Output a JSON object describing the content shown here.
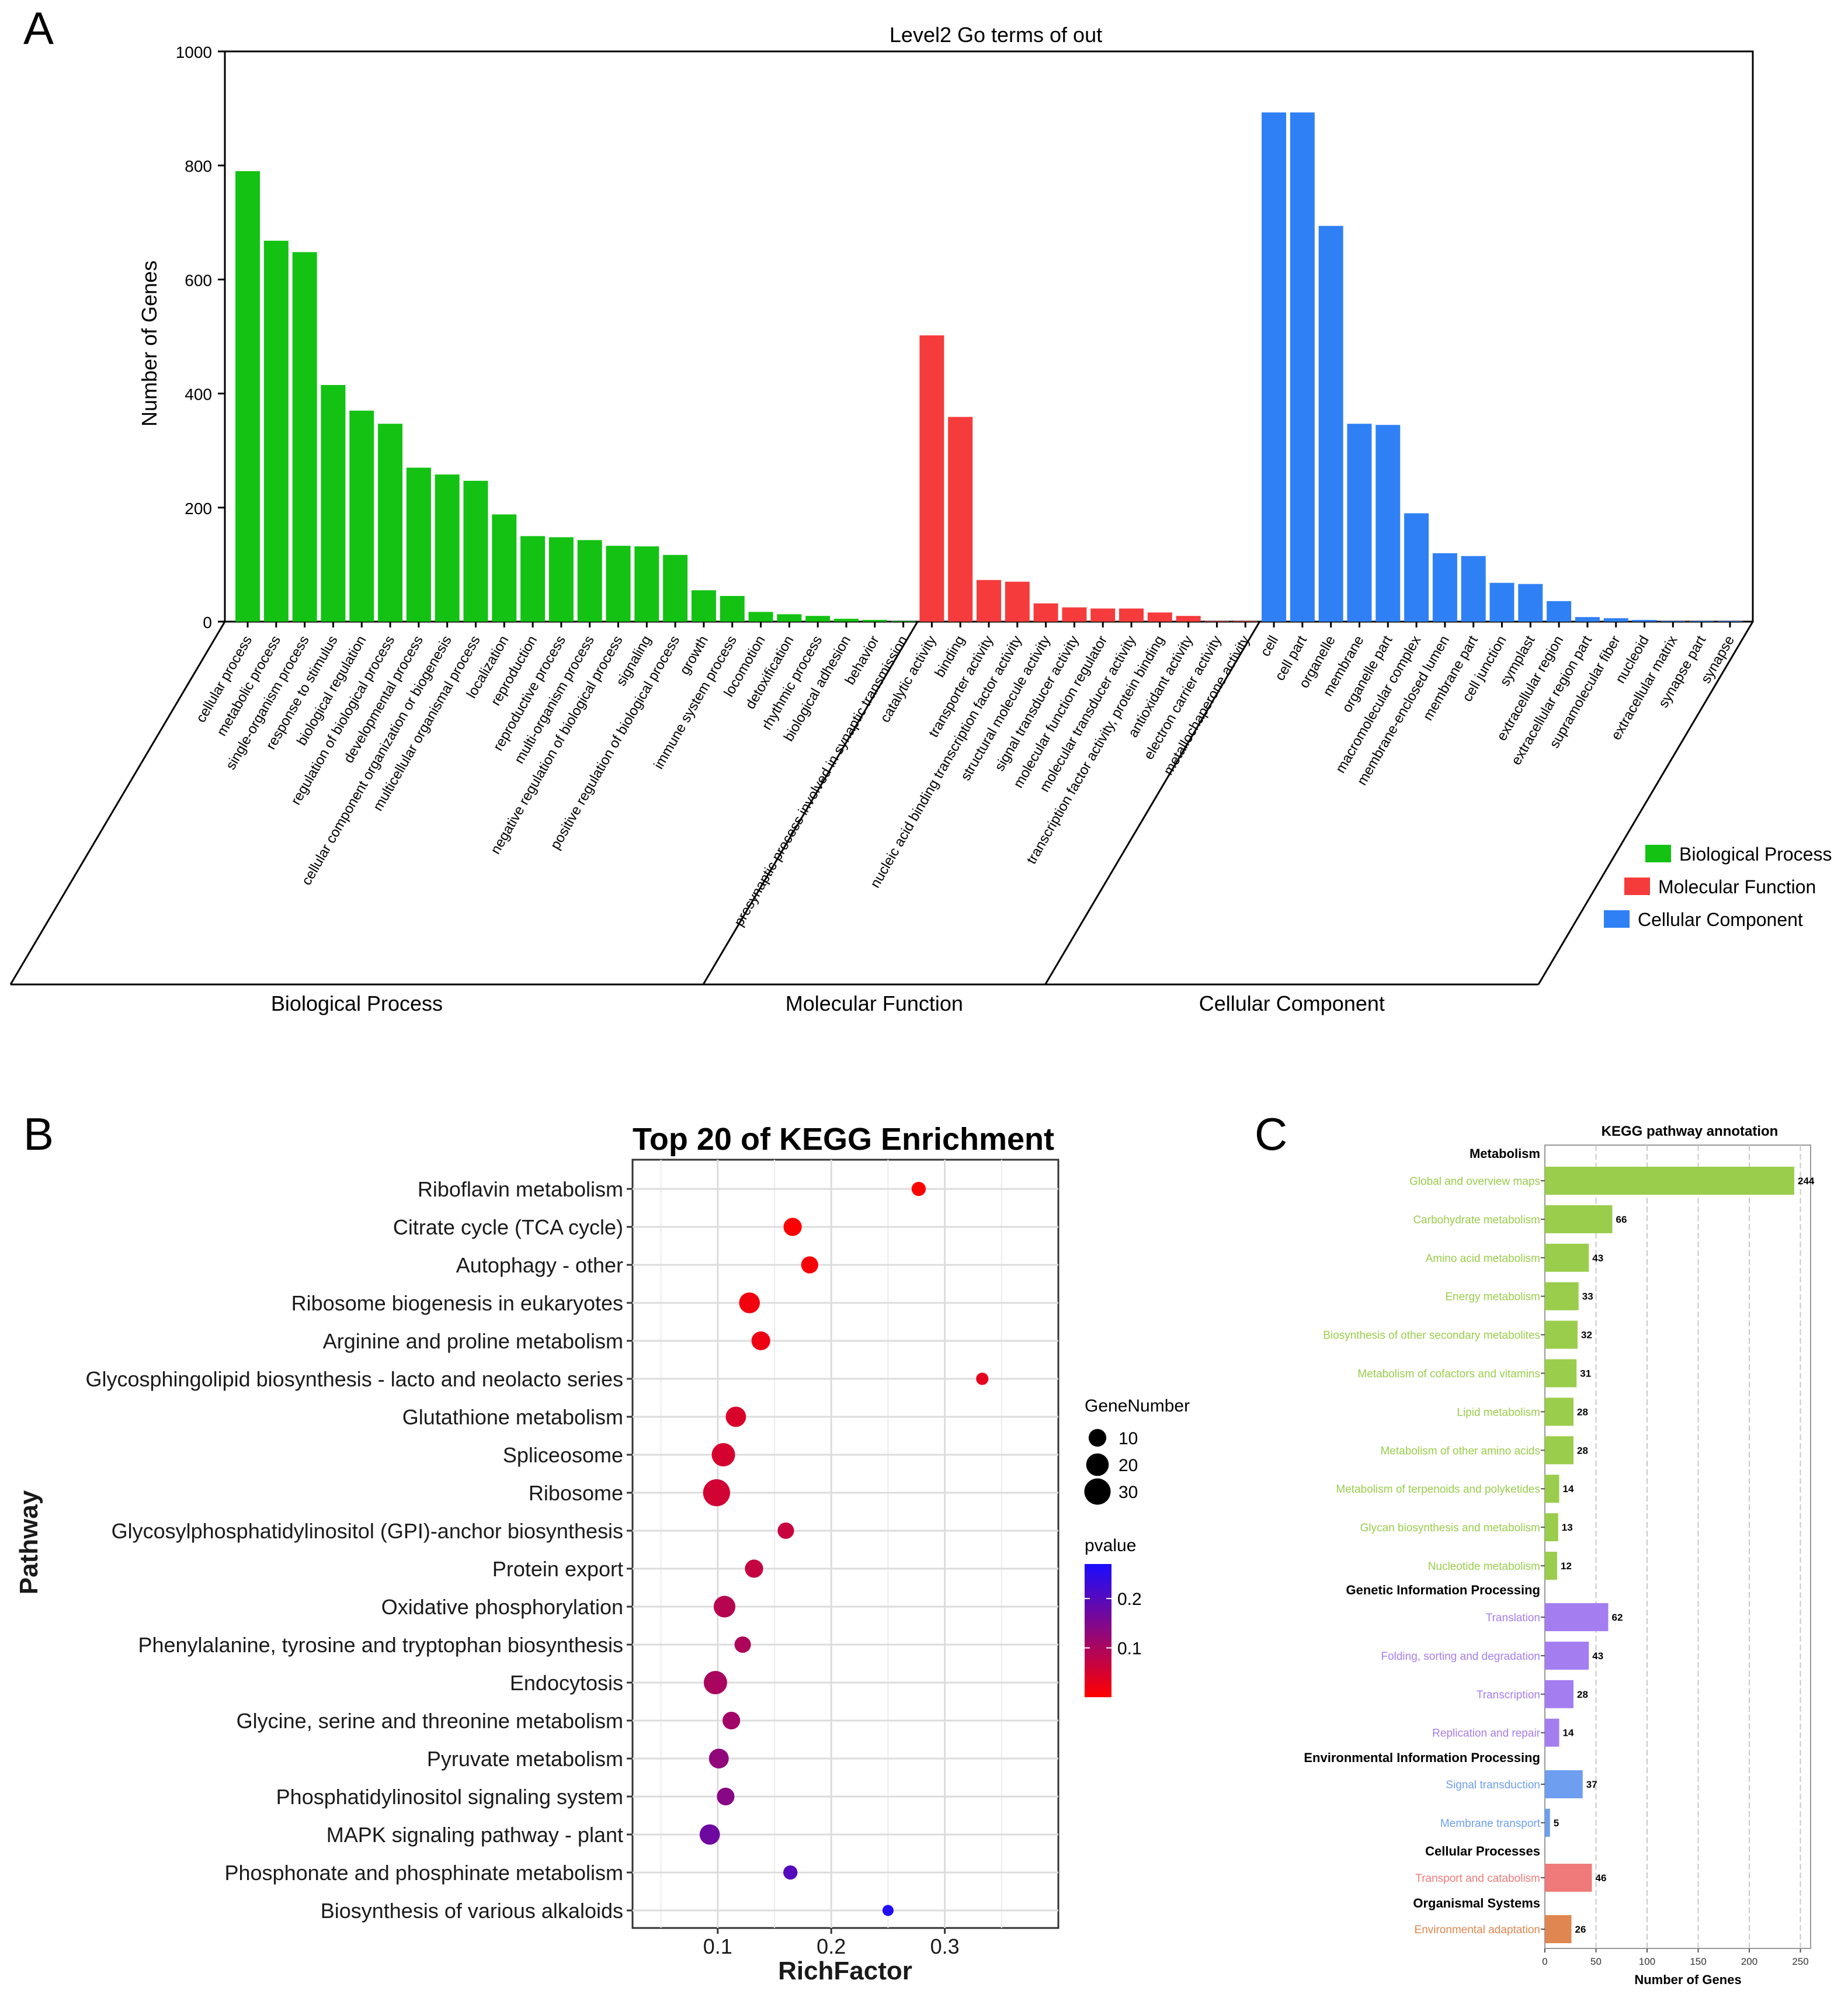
{
  "panels": {
    "a_letter": "A",
    "b_letter": "B",
    "c_letter": "C"
  },
  "chart_data": [
    {
      "id": "go",
      "type": "bar",
      "title": "Level2 Go terms of out",
      "ylabel": "Number of Genes",
      "ylim": [
        0,
        1000
      ],
      "yticks": [
        0,
        200,
        400,
        600,
        800,
        1000
      ],
      "colors": {
        "Biological Process": "#13c213",
        "Molecular Function": "#f53b3b",
        "Cellular Component": "#2f80f5"
      },
      "legend": [
        "Biological Process",
        "Molecular Function",
        "Cellular Component"
      ],
      "groups": [
        {
          "name": "Biological Process",
          "categories": [
            "cellular process",
            "metabolic process",
            "single-organism process",
            "response to stimulus",
            "biological regulation",
            "regulation of biological process",
            "developmental process",
            "cellular component organization or biogenesis",
            "multicellular organismal process",
            "localization",
            "reproduction",
            "reproductive process",
            "multi-organism process",
            "negative regulation of biological process",
            "signaling",
            "positive regulation of biological process",
            "growth",
            "immune system process",
            "locomotion",
            "detoxification",
            "rhythmic process",
            "biological adhesion",
            "behavior",
            "presynaptic process involved in synaptic transmission"
          ],
          "values": [
            790,
            668,
            648,
            415,
            370,
            347,
            270,
            258,
            247,
            188,
            150,
            148,
            143,
            133,
            132,
            117,
            55,
            45,
            17,
            13,
            10,
            5,
            3,
            1
          ]
        },
        {
          "name": "Molecular Function",
          "categories": [
            "catalytic activity",
            "binding",
            "transporter activity",
            "nucleic acid binding transcription factor activity",
            "structural molecule activity",
            "signal transducer activity",
            "molecular function regulator",
            "molecular transducer activity",
            "transcription factor activity, protein binding",
            "antioxidant activity",
            "electron carrier activity",
            "metallochaperone activity"
          ],
          "values": [
            502,
            359,
            73,
            70,
            32,
            25,
            23,
            23,
            16,
            10,
            1,
            1
          ]
        },
        {
          "name": "Cellular Component",
          "categories": [
            "cell",
            "cell part",
            "organelle",
            "membrane",
            "organelle part",
            "macromolecular complex",
            "membrane-enclosed lumen",
            "membrane part",
            "cell junction",
            "symplast",
            "extracellular region",
            "extracellular region part",
            "supramolecular fiber",
            "nucleoid",
            "extracellular matrix",
            "synapse part",
            "synapse"
          ],
          "values": [
            893,
            893,
            694,
            347,
            345,
            190,
            120,
            115,
            68,
            66,
            36,
            8,
            6,
            3,
            1,
            1,
            1
          ]
        }
      ]
    },
    {
      "id": "kegg_enrich",
      "type": "scatter",
      "title": "Top 20 of KEGG Enrichment",
      "xlabel": "RichFactor",
      "ylabel": "Pathway",
      "xlim": [
        0.025,
        0.4
      ],
      "xticks": [
        0.1,
        0.2,
        0.3
      ],
      "xticklabels": [
        "0.1",
        "0.2",
        "0.3"
      ],
      "size_legend_title": "GeneNumber",
      "size_legend": [
        10,
        20,
        30
      ],
      "color_legend_title": "pvalue",
      "color_legend_range": [
        0,
        0.27
      ],
      "color_legend_ticks": [
        0.1,
        0.2
      ],
      "color_legend_ticklabels": [
        "0.1",
        "0.2"
      ],
      "color_low": "#ff0000",
      "color_high": "#1a0dff",
      "points": [
        {
          "pathway": "Riboflavin metabolism",
          "richFactor": 0.277,
          "geneNumber": 5,
          "pvalue": 0.001
        },
        {
          "pathway": "Citrate cycle (TCA cycle)",
          "richFactor": 0.166,
          "geneNumber": 11,
          "pvalue": 0.004
        },
        {
          "pathway": "Autophagy - other",
          "richFactor": 0.181,
          "geneNumber": 9,
          "pvalue": 0.008
        },
        {
          "pathway": "Ribosome biogenesis in eukaryotes",
          "richFactor": 0.128,
          "geneNumber": 16,
          "pvalue": 0.015
        },
        {
          "pathway": "Arginine and proline metabolism",
          "richFactor": 0.138,
          "geneNumber": 12,
          "pvalue": 0.02
        },
        {
          "pathway": "Glycosphingolipid biosynthesis - lacto and neolacto series",
          "richFactor": 0.333,
          "geneNumber": 3,
          "pvalue": 0.03
        },
        {
          "pathway": "Glutathione metabolism",
          "richFactor": 0.116,
          "geneNumber": 15,
          "pvalue": 0.045
        },
        {
          "pathway": "Spliceosome",
          "richFactor": 0.105,
          "geneNumber": 22,
          "pvalue": 0.05
        },
        {
          "pathway": "Ribosome",
          "richFactor": 0.099,
          "geneNumber": 32,
          "pvalue": 0.055
        },
        {
          "pathway": "Glycosylphosphatidylinositol (GPI)-anchor biosynthesis",
          "richFactor": 0.16,
          "geneNumber": 8,
          "pvalue": 0.065
        },
        {
          "pathway": "Protein export",
          "richFactor": 0.132,
          "geneNumber": 11,
          "pvalue": 0.07
        },
        {
          "pathway": "Oxidative phosphorylation",
          "richFactor": 0.106,
          "geneNumber": 18,
          "pvalue": 0.085
        },
        {
          "pathway": "Phenylalanine, tyrosine and tryptophan biosynthesis",
          "richFactor": 0.122,
          "geneNumber": 8,
          "pvalue": 0.095
        },
        {
          "pathway": "Endocytosis",
          "richFactor": 0.098,
          "geneNumber": 22,
          "pvalue": 0.1
        },
        {
          "pathway": "Glycine, serine and threonine metabolism",
          "richFactor": 0.112,
          "geneNumber": 10,
          "pvalue": 0.11
        },
        {
          "pathway": "Pyruvate metabolism",
          "richFactor": 0.101,
          "geneNumber": 14,
          "pvalue": 0.13
        },
        {
          "pathway": "Phosphatidylinositol signaling system",
          "richFactor": 0.107,
          "geneNumber": 10,
          "pvalue": 0.14
        },
        {
          "pathway": "MAPK signaling pathway - plant",
          "richFactor": 0.093,
          "geneNumber": 15,
          "pvalue": 0.17
        },
        {
          "pathway": "Phosphonate and phosphinate metabolism",
          "richFactor": 0.164,
          "geneNumber": 5,
          "pvalue": 0.2
        },
        {
          "pathway": "Biosynthesis of various alkaloids",
          "richFactor": 0.25,
          "geneNumber": 2,
          "pvalue": 0.26
        }
      ]
    },
    {
      "id": "kegg_annot",
      "type": "bar",
      "title": "KEGG pathway annotation",
      "xlabel": "Number of Genes",
      "xlim": [
        0,
        260
      ],
      "xticks": [
        0,
        50,
        100,
        150,
        200,
        250
      ],
      "xticklabels": [
        "0",
        "50",
        "100",
        "150",
        "200",
        "250"
      ],
      "groups": [
        {
          "name": "Metabolism",
          "color": "#9acd4b",
          "items": [
            {
              "label": "Global and overview maps",
              "value": 244
            },
            {
              "label": "Carbohydrate metabolism",
              "value": 66
            },
            {
              "label": "Amino acid metabolism",
              "value": 43
            },
            {
              "label": "Energy metabolism",
              "value": 33
            },
            {
              "label": "Biosynthesis of other secondary metabolites",
              "value": 32
            },
            {
              "label": "Metabolism of cofactors and vitamins",
              "value": 31
            },
            {
              "label": "Lipid metabolism",
              "value": 28
            },
            {
              "label": "Metabolism of other amino acids",
              "value": 28
            },
            {
              "label": "Metabolism of terpenoids and polyketides",
              "value": 14
            },
            {
              "label": "Glycan biosynthesis and metabolism",
              "value": 13
            },
            {
              "label": "Nucleotide metabolism",
              "value": 12
            }
          ]
        },
        {
          "name": "Genetic Information Processing",
          "color": "#a47ef0",
          "items": [
            {
              "label": "Translation",
              "value": 62
            },
            {
              "label": "Folding, sorting and degradation",
              "value": 43
            },
            {
              "label": "Transcription",
              "value": 28
            },
            {
              "label": "Replication and repair",
              "value": 14
            }
          ]
        },
        {
          "name": "Environmental Information Processing",
          "color": "#6d9ef0",
          "items": [
            {
              "label": "Signal transduction",
              "value": 37
            },
            {
              "label": "Membrane transport",
              "value": 5
            }
          ]
        },
        {
          "name": "Cellular Processes",
          "color": "#f07a7a",
          "items": [
            {
              "label": "Transport and catabolism",
              "value": 46
            }
          ]
        },
        {
          "name": "Organismal Systems",
          "color": "#e08650",
          "items": [
            {
              "label": "Environmental adaptation",
              "value": 26
            }
          ]
        }
      ]
    }
  ]
}
